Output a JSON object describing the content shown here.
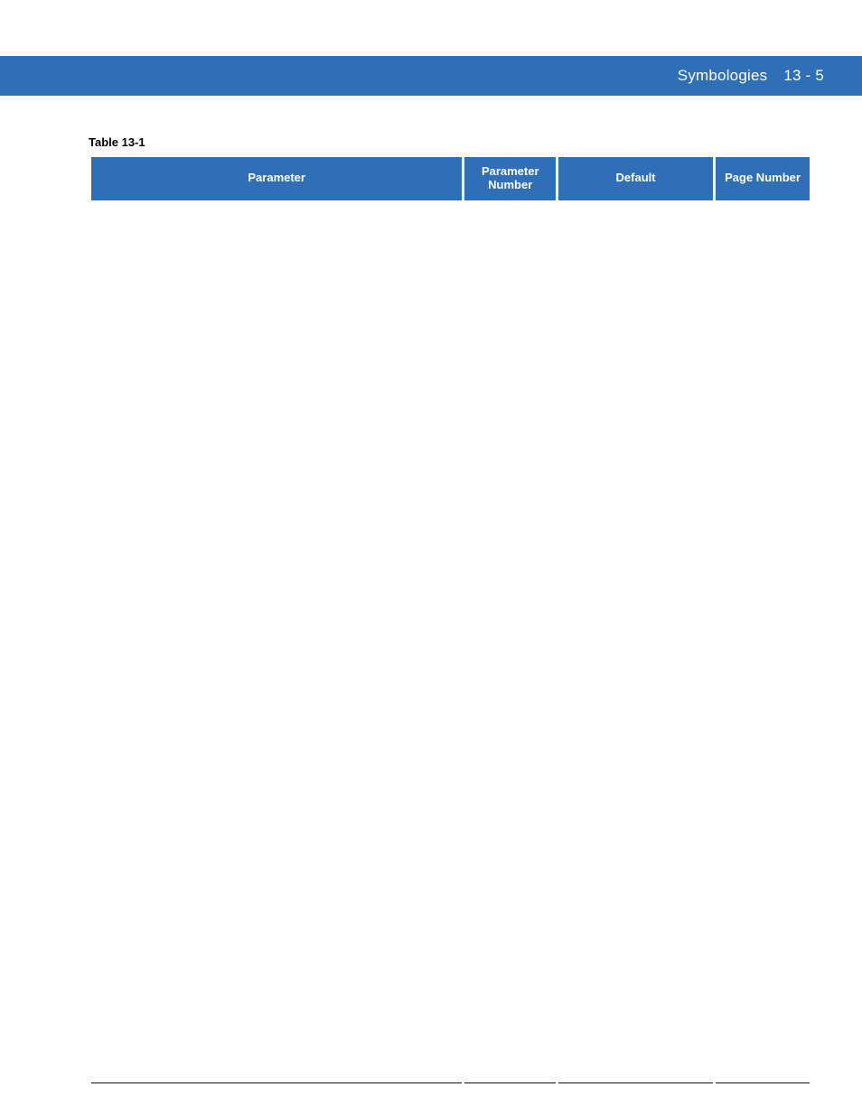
{
  "banner": {
    "chapter": "Symbologies",
    "page": "13 - 5"
  },
  "table": {
    "caption": "Table 13-1",
    "headers": {
      "parameter": "Parameter",
      "parameter_number": "Parameter Number",
      "default": "Default",
      "page_number": "Page Number"
    }
  }
}
